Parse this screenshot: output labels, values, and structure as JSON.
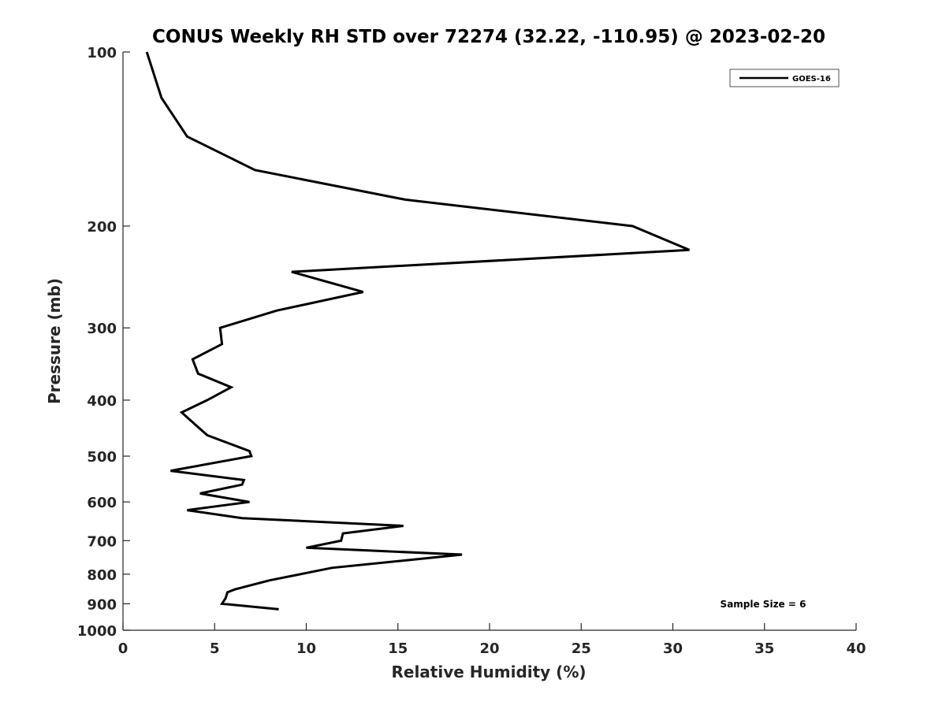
{
  "chart_data": {
    "type": "line",
    "title": "CONUS Weekly RH STD over 72274 (32.22, -110.95) @ 2023-02-20",
    "xlabel": "Relative Humidity (%)",
    "ylabel": "Pressure (mb)",
    "xlim": [
      0,
      40
    ],
    "ylim": [
      100,
      1000
    ],
    "y_scale": "log",
    "y_reversed": true,
    "x_ticks": [
      0,
      5,
      10,
      15,
      20,
      25,
      30,
      35,
      40
    ],
    "x_tick_labels": [
      "0",
      "5",
      "10",
      "15",
      "20",
      "25",
      "30",
      "35",
      "40"
    ],
    "y_ticks": [
      100,
      200,
      300,
      400,
      500,
      600,
      700,
      800,
      900,
      1000
    ],
    "y_tick_labels": [
      "100",
      "200",
      "300",
      "400",
      "500",
      "600",
      "700",
      "800",
      "900",
      "1000"
    ],
    "grid": false,
    "legend": {
      "position": "top-right",
      "entries": [
        "GOES-16"
      ]
    },
    "annotation": "Sample Size = 6",
    "series": [
      {
        "name": "GOES-16",
        "color": "#000000",
        "points": [
          [
            1.3,
            100
          ],
          [
            2.1,
            120
          ],
          [
            3.5,
            140
          ],
          [
            7.2,
            160
          ],
          [
            15.4,
            180
          ],
          [
            27.8,
            200
          ],
          [
            30.9,
            220
          ],
          [
            9.2,
            240
          ],
          [
            13.1,
            260
          ],
          [
            8.4,
            280
          ],
          [
            5.3,
            300
          ],
          [
            5.4,
            320
          ],
          [
            3.8,
            340
          ],
          [
            4.1,
            360
          ],
          [
            5.9,
            380
          ],
          [
            4.6,
            400
          ],
          [
            3.2,
            420
          ],
          [
            4.6,
            460
          ],
          [
            6.9,
            490
          ],
          [
            7.0,
            500
          ],
          [
            2.6,
            530
          ],
          [
            6.6,
            550
          ],
          [
            6.5,
            560
          ],
          [
            4.2,
            580
          ],
          [
            6.9,
            600
          ],
          [
            3.5,
            620
          ],
          [
            6.5,
            640
          ],
          [
            15.3,
            660
          ],
          [
            12.0,
            680
          ],
          [
            11.9,
            700
          ],
          [
            10.0,
            720
          ],
          [
            18.5,
            740
          ],
          [
            11.4,
            780
          ],
          [
            8.0,
            820
          ],
          [
            6.1,
            850
          ],
          [
            5.7,
            860
          ],
          [
            5.6,
            880
          ],
          [
            5.4,
            900
          ],
          [
            8.5,
            920
          ]
        ]
      }
    ]
  }
}
